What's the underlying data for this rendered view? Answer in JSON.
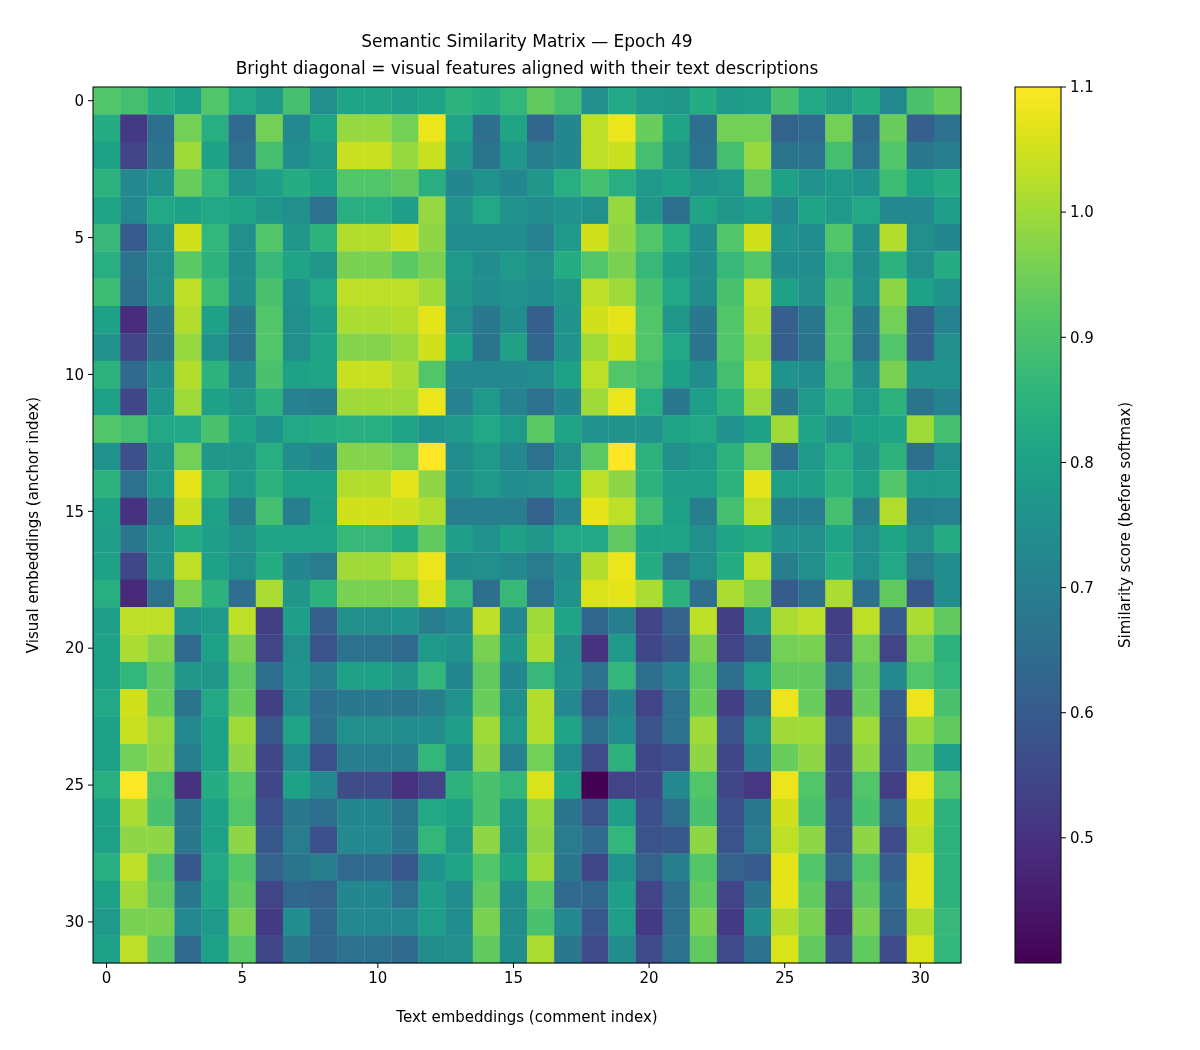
{
  "chart_data": {
    "type": "heatmap",
    "title": "Semantic Similarity Matrix — Epoch 49",
    "subtitle": "Bright diagonal = visual features aligned with their text descriptions",
    "xlabel": "Text embeddings (comment index)",
    "ylabel": "Visual embeddings (anchor index)",
    "clabel": "Similarity score (before softmax)",
    "categories": [
      "0",
      null,
      null,
      null,
      null,
      "5",
      null,
      null,
      null,
      null,
      "10",
      null,
      null,
      null,
      null,
      "15",
      null,
      null,
      null,
      null,
      "20",
      null,
      null,
      null,
      null,
      "25",
      null,
      null,
      null,
      null,
      "30",
      null
    ],
    "y_categories": [
      "0",
      null,
      null,
      null,
      null,
      "5",
      null,
      null,
      null,
      null,
      "10",
      null,
      null,
      null,
      null,
      "15",
      null,
      null,
      null,
      null,
      "20",
      null,
      null,
      null,
      null,
      "25",
      null,
      null,
      null,
      null,
      "30",
      null
    ],
    "clim": [
      0.4,
      1.1
    ],
    "cticks": [
      {
        "value": 0.5,
        "label": "0.5"
      },
      {
        "value": 0.6,
        "label": "0.6"
      },
      {
        "value": 0.7,
        "label": "0.7"
      },
      {
        "value": 0.8,
        "label": "0.8"
      },
      {
        "value": 0.9,
        "label": "0.9"
      },
      {
        "value": 1.0,
        "label": "1.0"
      },
      {
        "value": 1.1,
        "label": "1.1"
      }
    ],
    "cells": [
      [
        0.91,
        0.89,
        0.83,
        0.8,
        0.91,
        0.82,
        0.78,
        0.89,
        0.75,
        0.81,
        0.81,
        0.79,
        0.81,
        0.85,
        0.83,
        0.86,
        0.93,
        0.89,
        0.75,
        0.82,
        0.78,
        0.77,
        0.83,
        0.78,
        0.79,
        0.9,
        0.82,
        0.78,
        0.83,
        0.73,
        0.9,
        0.94
      ],
      [
        0.83,
        0.52,
        0.65,
        0.95,
        0.84,
        0.64,
        0.95,
        0.73,
        0.81,
        0.99,
        0.99,
        0.95,
        1.08,
        0.81,
        0.65,
        0.81,
        0.63,
        0.72,
        1.03,
        1.08,
        0.94,
        0.81,
        0.65,
        0.95,
        0.95,
        0.62,
        0.64,
        0.95,
        0.64,
        0.94,
        0.61,
        0.66
      ],
      [
        0.8,
        0.54,
        0.67,
        1.0,
        0.8,
        0.66,
        0.89,
        0.74,
        0.78,
        1.04,
        1.04,
        0.99,
        1.04,
        0.77,
        0.67,
        0.77,
        0.7,
        0.72,
        1.03,
        1.04,
        0.89,
        0.77,
        0.67,
        0.89,
        0.99,
        0.67,
        0.66,
        0.89,
        0.66,
        0.91,
        0.68,
        0.7
      ],
      [
        0.85,
        0.73,
        0.76,
        0.94,
        0.86,
        0.76,
        0.79,
        0.83,
        0.8,
        0.91,
        0.91,
        0.93,
        0.84,
        0.72,
        0.76,
        0.72,
        0.77,
        0.84,
        0.89,
        0.84,
        0.78,
        0.8,
        0.76,
        0.78,
        0.93,
        0.8,
        0.76,
        0.78,
        0.76,
        0.88,
        0.8,
        0.83
      ],
      [
        0.81,
        0.73,
        0.82,
        0.8,
        0.82,
        0.81,
        0.77,
        0.75,
        0.66,
        0.84,
        0.84,
        0.79,
        0.99,
        0.76,
        0.82,
        0.76,
        0.74,
        0.76,
        0.75,
        0.99,
        0.77,
        0.65,
        0.81,
        0.77,
        0.79,
        0.73,
        0.81,
        0.78,
        0.82,
        0.73,
        0.73,
        0.79
      ],
      [
        0.87,
        0.6,
        0.75,
        1.05,
        0.86,
        0.75,
        0.91,
        0.77,
        0.85,
        1.02,
        1.02,
        1.05,
        0.98,
        0.74,
        0.74,
        0.74,
        0.71,
        0.78,
        1.05,
        0.98,
        0.91,
        0.84,
        0.74,
        0.91,
        1.05,
        0.76,
        0.74,
        0.91,
        0.74,
        1.02,
        0.75,
        0.72
      ],
      [
        0.84,
        0.67,
        0.75,
        0.92,
        0.85,
        0.74,
        0.87,
        0.81,
        0.77,
        0.96,
        0.96,
        0.92,
        0.96,
        0.78,
        0.74,
        0.78,
        0.75,
        0.83,
        0.91,
        0.96,
        0.87,
        0.79,
        0.74,
        0.87,
        0.91,
        0.74,
        0.74,
        0.87,
        0.74,
        0.85,
        0.75,
        0.83
      ],
      [
        0.88,
        0.65,
        0.75,
        1.03,
        0.88,
        0.74,
        0.9,
        0.76,
        0.82,
        1.03,
        1.03,
        1.03,
        1.0,
        0.77,
        0.74,
        0.76,
        0.74,
        0.77,
        1.03,
        1.0,
        0.9,
        0.82,
        0.74,
        0.9,
        1.03,
        0.8,
        0.75,
        0.9,
        0.75,
        0.98,
        0.8,
        0.76
      ],
      [
        0.8,
        0.49,
        0.68,
        1.02,
        0.8,
        0.68,
        0.91,
        0.75,
        0.79,
        1.01,
        1.01,
        1.02,
        1.07,
        0.75,
        0.68,
        0.74,
        0.61,
        0.76,
        1.05,
        1.07,
        0.91,
        0.77,
        0.68,
        0.91,
        1.02,
        0.61,
        0.68,
        0.91,
        0.68,
        0.95,
        0.61,
        0.71
      ],
      [
        0.76,
        0.54,
        0.67,
        0.99,
        0.76,
        0.66,
        0.91,
        0.75,
        0.81,
        0.97,
        0.97,
        0.99,
        1.05,
        0.8,
        0.67,
        0.8,
        0.63,
        0.76,
        1.0,
        1.05,
        0.91,
        0.82,
        0.67,
        0.91,
        1.0,
        0.61,
        0.67,
        0.91,
        0.66,
        0.91,
        0.61,
        0.75
      ],
      [
        0.85,
        0.64,
        0.74,
        1.02,
        0.85,
        0.73,
        0.9,
        0.8,
        0.81,
        1.04,
        1.04,
        1.01,
        0.91,
        0.73,
        0.73,
        0.73,
        0.74,
        0.8,
        1.03,
        0.91,
        0.89,
        0.8,
        0.74,
        0.89,
        1.03,
        0.76,
        0.74,
        0.89,
        0.74,
        0.96,
        0.76,
        0.76
      ],
      [
        0.8,
        0.55,
        0.77,
        1.0,
        0.8,
        0.77,
        0.85,
        0.71,
        0.7,
        1.0,
        1.0,
        1.0,
        1.08,
        0.71,
        0.78,
        0.71,
        0.66,
        0.72,
        1.0,
        1.08,
        0.84,
        0.68,
        0.79,
        0.85,
        1.0,
        0.68,
        0.78,
        0.85,
        0.78,
        0.85,
        0.67,
        0.71
      ],
      [
        0.91,
        0.89,
        0.82,
        0.82,
        0.9,
        0.81,
        0.76,
        0.82,
        0.83,
        0.84,
        0.84,
        0.81,
        0.76,
        0.78,
        0.82,
        0.78,
        0.92,
        0.81,
        0.76,
        0.76,
        0.76,
        0.81,
        0.82,
        0.76,
        0.8,
        1.0,
        0.81,
        0.76,
        0.8,
        0.81,
        1.0,
        0.89
      ],
      [
        0.76,
        0.57,
        0.77,
        0.95,
        0.77,
        0.77,
        0.84,
        0.74,
        0.72,
        0.97,
        0.97,
        0.95,
        1.1,
        0.74,
        0.78,
        0.73,
        0.66,
        0.75,
        0.92,
        1.1,
        0.85,
        0.75,
        0.78,
        0.85,
        0.95,
        0.65,
        0.78,
        0.84,
        0.77,
        0.85,
        0.65,
        0.75
      ],
      [
        0.85,
        0.66,
        0.78,
        1.07,
        0.85,
        0.78,
        0.85,
        0.8,
        0.8,
        1.02,
        1.02,
        1.07,
        0.98,
        0.74,
        0.78,
        0.74,
        0.75,
        0.8,
        1.03,
        0.98,
        0.85,
        0.79,
        0.79,
        0.85,
        1.07,
        0.79,
        0.79,
        0.85,
        0.8,
        0.91,
        0.78,
        0.78
      ],
      [
        0.8,
        0.5,
        0.7,
        1.04,
        0.8,
        0.7,
        0.89,
        0.7,
        0.8,
        1.05,
        1.05,
        1.04,
        1.02,
        0.7,
        0.7,
        0.7,
        0.62,
        0.71,
        1.07,
        1.03,
        0.89,
        0.8,
        0.7,
        0.89,
        1.03,
        0.7,
        0.7,
        0.89,
        0.7,
        1.02,
        0.7,
        0.71
      ],
      [
        0.79,
        0.68,
        0.76,
        0.83,
        0.79,
        0.76,
        0.81,
        0.81,
        0.81,
        0.87,
        0.87,
        0.83,
        0.93,
        0.79,
        0.76,
        0.8,
        0.77,
        0.82,
        0.82,
        0.93,
        0.81,
        0.81,
        0.75,
        0.81,
        0.83,
        0.76,
        0.75,
        0.81,
        0.75,
        0.81,
        0.75,
        0.83
      ],
      [
        0.8,
        0.55,
        0.76,
        1.03,
        0.8,
        0.75,
        0.83,
        0.72,
        0.69,
        1.0,
        1.0,
        1.03,
        1.08,
        0.74,
        0.75,
        0.73,
        0.69,
        0.74,
        1.02,
        1.08,
        0.83,
        0.69,
        0.75,
        0.83,
        1.03,
        0.7,
        0.75,
        0.83,
        0.75,
        0.82,
        0.69,
        0.74
      ],
      [
        0.84,
        0.48,
        0.66,
        0.96,
        0.85,
        0.65,
        1.01,
        0.77,
        0.85,
        0.96,
        0.96,
        0.96,
        1.06,
        0.87,
        0.65,
        0.87,
        0.66,
        0.76,
        1.06,
        1.07,
        1.01,
        0.85,
        0.65,
        1.01,
        0.96,
        0.6,
        0.65,
        1.01,
        0.65,
        0.93,
        0.59,
        0.74
      ],
      [
        0.79,
        1.03,
        1.03,
        0.76,
        0.78,
        1.03,
        0.53,
        0.79,
        0.61,
        0.75,
        0.75,
        0.76,
        0.7,
        0.73,
        1.03,
        0.73,
        1.0,
        0.81,
        0.63,
        0.7,
        0.54,
        0.62,
        1.03,
        0.53,
        0.76,
        1.01,
        1.03,
        0.53,
        1.03,
        0.6,
        1.01,
        0.93
      ],
      [
        0.8,
        1.01,
        0.97,
        0.64,
        0.8,
        0.96,
        0.54,
        0.75,
        0.58,
        0.66,
        0.66,
        0.64,
        0.78,
        0.76,
        0.96,
        0.77,
        1.01,
        0.75,
        0.5,
        0.78,
        0.55,
        0.59,
        0.96,
        0.54,
        0.63,
        0.95,
        0.96,
        0.54,
        0.95,
        0.54,
        0.95,
        0.85
      ],
      [
        0.8,
        0.86,
        0.93,
        0.77,
        0.77,
        0.93,
        0.65,
        0.76,
        0.7,
        0.8,
        0.8,
        0.77,
        0.86,
        0.72,
        0.93,
        0.72,
        0.87,
        0.76,
        0.66,
        0.86,
        0.65,
        0.71,
        0.93,
        0.65,
        0.78,
        0.93,
        0.93,
        0.65,
        0.93,
        0.73,
        0.91,
        0.86
      ],
      [
        0.82,
        1.05,
        0.94,
        0.67,
        0.82,
        0.94,
        0.53,
        0.74,
        0.65,
        0.68,
        0.68,
        0.67,
        0.7,
        0.76,
        0.94,
        0.75,
        1.02,
        0.73,
        0.58,
        0.72,
        0.54,
        0.66,
        0.94,
        0.53,
        0.67,
        1.08,
        0.94,
        0.53,
        0.94,
        0.6,
        1.08,
        0.9
      ],
      [
        0.8,
        1.04,
        0.99,
        0.73,
        0.8,
        1.0,
        0.59,
        0.81,
        0.65,
        0.75,
        0.75,
        0.74,
        0.74,
        0.79,
        1.0,
        0.78,
        1.02,
        0.81,
        0.65,
        0.74,
        0.58,
        0.66,
        1.0,
        0.58,
        0.75,
        1.0,
        1.0,
        0.58,
        1.0,
        0.58,
        0.99,
        0.93
      ],
      [
        0.8,
        0.95,
        0.98,
        0.7,
        0.8,
        0.98,
        0.55,
        0.74,
        0.57,
        0.7,
        0.7,
        0.7,
        0.86,
        0.74,
        0.98,
        0.71,
        0.95,
        0.74,
        0.56,
        0.85,
        0.55,
        0.57,
        0.98,
        0.55,
        0.71,
        0.94,
        0.98,
        0.55,
        0.98,
        0.57,
        0.94,
        0.79
      ],
      [
        0.84,
        1.1,
        0.91,
        0.5,
        0.83,
        0.92,
        0.55,
        0.8,
        0.73,
        0.56,
        0.56,
        0.5,
        0.54,
        0.85,
        0.9,
        0.86,
        1.06,
        0.8,
        0.4,
        0.54,
        0.55,
        0.73,
        0.91,
        0.55,
        0.51,
        1.08,
        0.91,
        0.55,
        0.91,
        0.53,
        1.08,
        0.91
      ],
      [
        0.8,
        1.01,
        0.9,
        0.67,
        0.8,
        0.91,
        0.57,
        0.68,
        0.65,
        0.72,
        0.72,
        0.67,
        0.82,
        0.8,
        0.9,
        0.78,
        0.99,
        0.67,
        0.58,
        0.79,
        0.57,
        0.65,
        0.9,
        0.57,
        0.68,
        1.05,
        0.9,
        0.57,
        0.9,
        0.62,
        1.05,
        0.85
      ],
      [
        0.8,
        0.98,
        0.98,
        0.68,
        0.8,
        0.98,
        0.59,
        0.69,
        0.57,
        0.73,
        0.73,
        0.68,
        0.86,
        0.78,
        0.98,
        0.77,
        0.98,
        0.69,
        0.64,
        0.86,
        0.58,
        0.59,
        0.98,
        0.58,
        0.69,
        1.03,
        0.98,
        0.58,
        0.98,
        0.56,
        1.03,
        0.85
      ],
      [
        0.84,
        1.03,
        0.91,
        0.59,
        0.82,
        0.91,
        0.62,
        0.67,
        0.7,
        0.64,
        0.64,
        0.59,
        0.76,
        0.81,
        0.91,
        0.81,
        1.0,
        0.68,
        0.55,
        0.76,
        0.62,
        0.7,
        0.91,
        0.62,
        0.6,
        1.07,
        0.91,
        0.62,
        0.91,
        0.61,
        1.07,
        0.85
      ],
      [
        0.8,
        1.0,
        0.93,
        0.68,
        0.81,
        0.93,
        0.54,
        0.63,
        0.62,
        0.72,
        0.72,
        0.66,
        0.79,
        0.74,
        0.93,
        0.74,
        0.92,
        0.64,
        0.63,
        0.79,
        0.54,
        0.65,
        0.93,
        0.54,
        0.67,
        1.07,
        0.93,
        0.54,
        0.93,
        0.64,
        1.07,
        0.85
      ],
      [
        0.78,
        0.96,
        0.96,
        0.73,
        0.78,
        0.96,
        0.52,
        0.74,
        0.63,
        0.73,
        0.73,
        0.73,
        0.79,
        0.74,
        0.96,
        0.74,
        0.9,
        0.73,
        0.59,
        0.79,
        0.52,
        0.65,
        0.96,
        0.52,
        0.74,
        1.02,
        0.96,
        0.52,
        0.96,
        0.62,
        1.02,
        0.87
      ],
      [
        0.8,
        1.03,
        0.92,
        0.64,
        0.8,
        0.92,
        0.55,
        0.68,
        0.63,
        0.66,
        0.66,
        0.64,
        0.74,
        0.75,
        0.93,
        0.74,
        1.01,
        0.68,
        0.56,
        0.74,
        0.56,
        0.66,
        0.93,
        0.56,
        0.66,
        1.06,
        0.93,
        0.56,
        0.93,
        0.56,
        1.06,
        0.86
      ]
    ]
  }
}
